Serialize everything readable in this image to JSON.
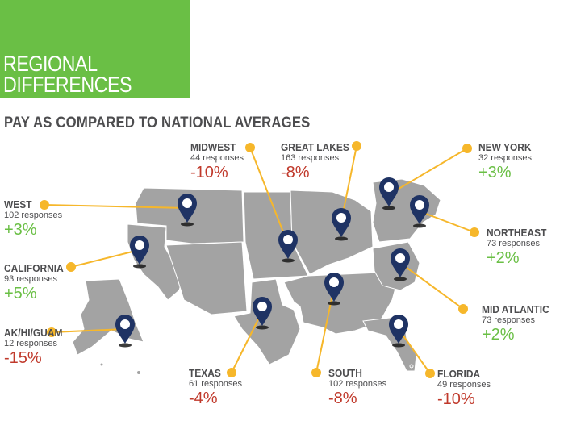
{
  "header": {
    "title": "REGIONAL\nDIFFERENCES"
  },
  "subtitle": "PAY AS COMPARED TO NATIONAL AVERAGES",
  "colors": {
    "header_green": "#6abf45",
    "positive": "#6abf45",
    "negative": "#c0392b",
    "callout_line": "#f6b72b",
    "pin": "#1f3364",
    "map": "#a3a3a3"
  },
  "regions": [
    {
      "key": "midwest",
      "name": "MIDWEST",
      "responses": "44 responses",
      "change": "-10%",
      "trend": "negative"
    },
    {
      "key": "great_lakes",
      "name": "GREAT LAKES",
      "responses": "163 responses",
      "change": "-8%",
      "trend": "negative"
    },
    {
      "key": "new_york",
      "name": "NEW YORK",
      "responses": "32 responses",
      "change": "+3%",
      "trend": "positive"
    },
    {
      "key": "west",
      "name": "WEST",
      "responses": "102 responses",
      "change": "+3%",
      "trend": "positive"
    },
    {
      "key": "northeast",
      "name": "NORTHEAST",
      "responses": "73 responses",
      "change": "+2%",
      "trend": "positive"
    },
    {
      "key": "california",
      "name": "CALIFORNIA",
      "responses": "93 responses",
      "change": "+5%",
      "trend": "positive"
    },
    {
      "key": "mid_atlantic",
      "name": "MID ATLANTIC",
      "responses": "73 responses",
      "change": "+2%",
      "trend": "positive"
    },
    {
      "key": "ak_hi_guam",
      "name": "AK/HI/GUAM",
      "responses": "12 responses",
      "change": "-15%",
      "trend": "negative"
    },
    {
      "key": "texas",
      "name": "TEXAS",
      "responses": "61 responses",
      "change": "-4%",
      "trend": "negative"
    },
    {
      "key": "south",
      "name": "SOUTH",
      "responses": "102 responses",
      "change": "-8%",
      "trend": "negative"
    },
    {
      "key": "florida",
      "name": "FLORIDA",
      "responses": "49 responses",
      "change": "-10%",
      "trend": "negative"
    }
  ]
}
